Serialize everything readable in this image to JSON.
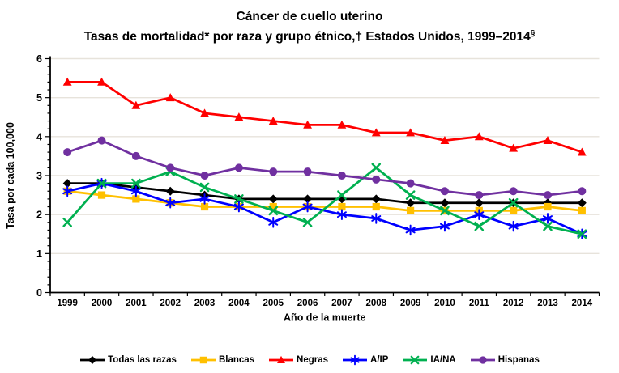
{
  "title": {
    "line1": "Cáncer de cuello uterino",
    "line2_text": "Tasas de mortalidad* por raza y grupo étnico,† Estados Unidos, 1999–2014",
    "line2_sup": "§"
  },
  "chart_data": {
    "type": "line",
    "x": [
      1999,
      2000,
      2001,
      2002,
      2003,
      2004,
      2005,
      2006,
      2007,
      2008,
      2009,
      2010,
      2011,
      2012,
      2013,
      2014
    ],
    "series": [
      {
        "name": "Todas las razas",
        "color": "#000000",
        "marker": "diamond",
        "values": [
          2.8,
          2.8,
          2.7,
          2.6,
          2.5,
          2.4,
          2.4,
          2.4,
          2.4,
          2.4,
          2.3,
          2.3,
          2.3,
          2.3,
          2.3,
          2.3
        ]
      },
      {
        "name": "Blancas",
        "color": "#FFC000",
        "marker": "square",
        "values": [
          2.6,
          2.5,
          2.4,
          2.3,
          2.2,
          2.2,
          2.2,
          2.2,
          2.2,
          2.2,
          2.1,
          2.1,
          2.1,
          2.1,
          2.2,
          2.1
        ]
      },
      {
        "name": "Negras",
        "color": "#FF0000",
        "marker": "triangle",
        "values": [
          5.4,
          5.4,
          4.8,
          5.0,
          4.6,
          4.5,
          4.4,
          4.3,
          4.3,
          4.1,
          4.1,
          3.9,
          4.0,
          3.7,
          3.9,
          3.6
        ]
      },
      {
        "name": "A/IP",
        "color": "#0000FF",
        "marker": "asterisk",
        "values": [
          2.6,
          2.8,
          2.6,
          2.3,
          2.4,
          2.2,
          1.8,
          2.2,
          2.0,
          1.9,
          1.6,
          1.7,
          2.0,
          1.7,
          1.9,
          1.5
        ]
      },
      {
        "name": "IA/NA",
        "color": "#00B050",
        "marker": "x",
        "values": [
          1.8,
          2.8,
          2.8,
          3.1,
          2.7,
          2.4,
          2.1,
          1.8,
          2.5,
          3.2,
          2.5,
          2.1,
          1.7,
          2.3,
          1.7,
          1.5
        ]
      },
      {
        "name": "Hispanas",
        "color": "#7030A0",
        "marker": "circle",
        "values": [
          3.6,
          3.9,
          3.5,
          3.2,
          3.0,
          3.2,
          3.1,
          3.1,
          3.0,
          2.9,
          2.8,
          2.6,
          2.5,
          2.6,
          2.5,
          2.6
        ]
      }
    ],
    "xlabel": "Año de la muerte",
    "ylabel": "Tasa por cada 100,000",
    "ylim": [
      0,
      6
    ],
    "yticks": [
      0,
      1,
      2,
      3,
      4,
      5,
      6
    ],
    "y_minor_step": 0.2,
    "grid": true,
    "grid_color": "#E7E3DB",
    "axis_color": "#000000",
    "legend_position": "bottom"
  }
}
